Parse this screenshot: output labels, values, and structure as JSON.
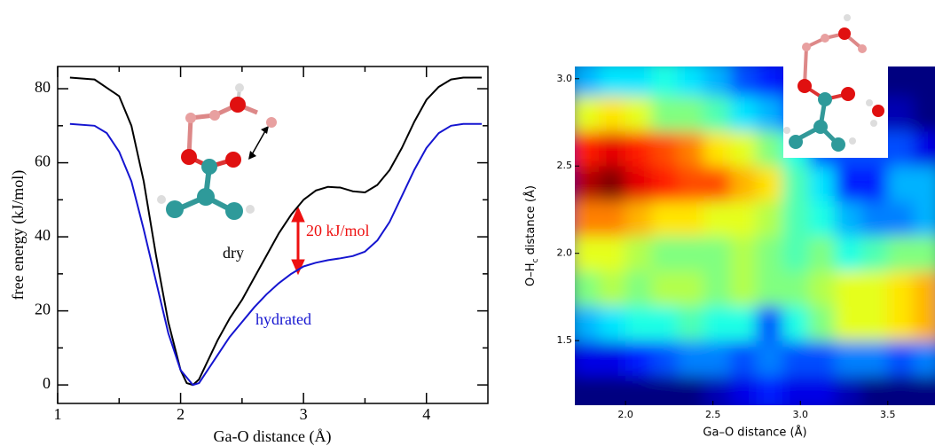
{
  "chart_data": [
    {
      "type": "line",
      "xlabel": "Ga-O distance (Å)",
      "ylabel": "free energy (kJ/mol)",
      "xlim": [
        1,
        4.5
      ],
      "ylim": [
        -5,
        86
      ],
      "xticks": [
        1,
        2,
        3,
        4
      ],
      "yticks": [
        0,
        20,
        40,
        60,
        80
      ],
      "xminorticks": [
        1.5,
        2.5,
        3.5
      ],
      "yminorticks": [
        10,
        30,
        50,
        70
      ],
      "annotation": "20 kJ/mol",
      "annotation_color": "#ee1111",
      "series": [
        {
          "name": "dry",
          "color": "#000000",
          "x": [
            1.1,
            1.3,
            1.5,
            1.6,
            1.7,
            1.8,
            1.9,
            2.0,
            2.05,
            2.1,
            2.15,
            2.2,
            2.3,
            2.4,
            2.5,
            2.6,
            2.7,
            2.8,
            2.9,
            3.0,
            3.1,
            3.2,
            3.3,
            3.4,
            3.5,
            3.6,
            3.7,
            3.8,
            3.9,
            4.0,
            4.1,
            4.2,
            4.3,
            4.45
          ],
          "values": [
            83,
            82.5,
            78,
            70,
            55,
            35,
            17,
            4,
            0.5,
            0,
            1.5,
            5,
            12,
            18,
            23,
            29,
            35,
            41,
            46,
            50,
            52.5,
            53.5,
            53.3,
            52.3,
            52,
            54,
            58,
            64,
            71,
            77,
            80.5,
            82.5,
            83,
            83
          ]
        },
        {
          "name": "hydrated",
          "color": "#1515d0",
          "x": [
            1.1,
            1.3,
            1.4,
            1.5,
            1.6,
            1.7,
            1.8,
            1.9,
            2.0,
            2.1,
            2.15,
            2.2,
            2.3,
            2.4,
            2.5,
            2.6,
            2.7,
            2.8,
            2.9,
            3.0,
            3.1,
            3.2,
            3.3,
            3.4,
            3.5,
            3.6,
            3.7,
            3.8,
            3.9,
            4.0,
            4.1,
            4.2,
            4.3,
            4.45
          ],
          "values": [
            70.5,
            70,
            68,
            63,
            55,
            42,
            28,
            14,
            4,
            0,
            0.5,
            3,
            8,
            13,
            17,
            21,
            24.5,
            27.5,
            30,
            32,
            33,
            33.7,
            34.2,
            34.8,
            36,
            39,
            44,
            51,
            58,
            64,
            68,
            70,
            70.5,
            70.5
          ]
        }
      ]
    },
    {
      "type": "heatmap",
      "xlabel": "Ga–O distance (Å)",
      "ylabel": [
        "O–H",
        "c",
        " distance (Å)"
      ],
      "xlim": [
        1.71,
        3.77
      ],
      "ylim": [
        1.13,
        3.07
      ],
      "xticks": [
        {
          "value": 2.0,
          "label": "2.0"
        },
        {
          "value": 2.5,
          "label": "2.5"
        },
        {
          "value": 3.0,
          "label": "3.0"
        },
        {
          "value": 3.5,
          "label": "3.5"
        }
      ],
      "yticks": [
        {
          "value": 1.5,
          "label": "1.5"
        },
        {
          "value": 2.0,
          "label": "2.0"
        },
        {
          "value": 2.5,
          "label": "2.5"
        },
        {
          "value": 3.0,
          "label": "3.0"
        }
      ],
      "colormap": "jet",
      "zlim": [
        0,
        10
      ],
      "xbins": [
        1.7,
        1.85,
        2.0,
        2.15,
        2.3,
        2.45,
        2.6,
        2.75,
        2.9,
        3.05,
        3.2,
        3.35,
        3.5,
        3.65,
        3.8
      ],
      "ybins": [
        1.1,
        1.3,
        1.5,
        1.7,
        1.9,
        2.1,
        2.3,
        2.5,
        2.7,
        2.9,
        3.1
      ],
      "z": [
        [
          0,
          0,
          0,
          0,
          0,
          0.5,
          1,
          1.5,
          1,
          1,
          0.5,
          0,
          0,
          0
        ],
        [
          1,
          1,
          1.5,
          2,
          2.5,
          2.5,
          2,
          2.5,
          2,
          2,
          2.5,
          2.5,
          2,
          2.5
        ],
        [
          3,
          3.5,
          4,
          4,
          4.5,
          4,
          4,
          2,
          4,
          5,
          6,
          6,
          6.5,
          7
        ],
        [
          5,
          5.5,
          5,
          5.5,
          5.5,
          5,
          5.5,
          5,
          5,
          5.5,
          6,
          6,
          6.5,
          7
        ],
        [
          6,
          6,
          5.5,
          5,
          5,
          5,
          5.5,
          5,
          4.5,
          5,
          4,
          4.5,
          5,
          5
        ],
        [
          7.5,
          7.5,
          7,
          6.5,
          6.5,
          6,
          6,
          5.5,
          4.5,
          4,
          3,
          2.5,
          2.5,
          3
        ],
        [
          9.5,
          10,
          9,
          8.5,
          8,
          8,
          7,
          6.5,
          4.5,
          3.5,
          1.5,
          1.5,
          3,
          3
        ],
        [
          8.5,
          9,
          8.5,
          8,
          7.5,
          6.5,
          6,
          5,
          4,
          2,
          2,
          2,
          2,
          1
        ],
        [
          6,
          6.5,
          6,
          5,
          5,
          4.5,
          3.5,
          3,
          2,
          1,
          1,
          0.5,
          0.5,
          0
        ],
        [
          3,
          3.5,
          3.5,
          4,
          3.5,
          3,
          2,
          1.5,
          1,
          0,
          0,
          0,
          0,
          0
        ]
      ]
    }
  ]
}
